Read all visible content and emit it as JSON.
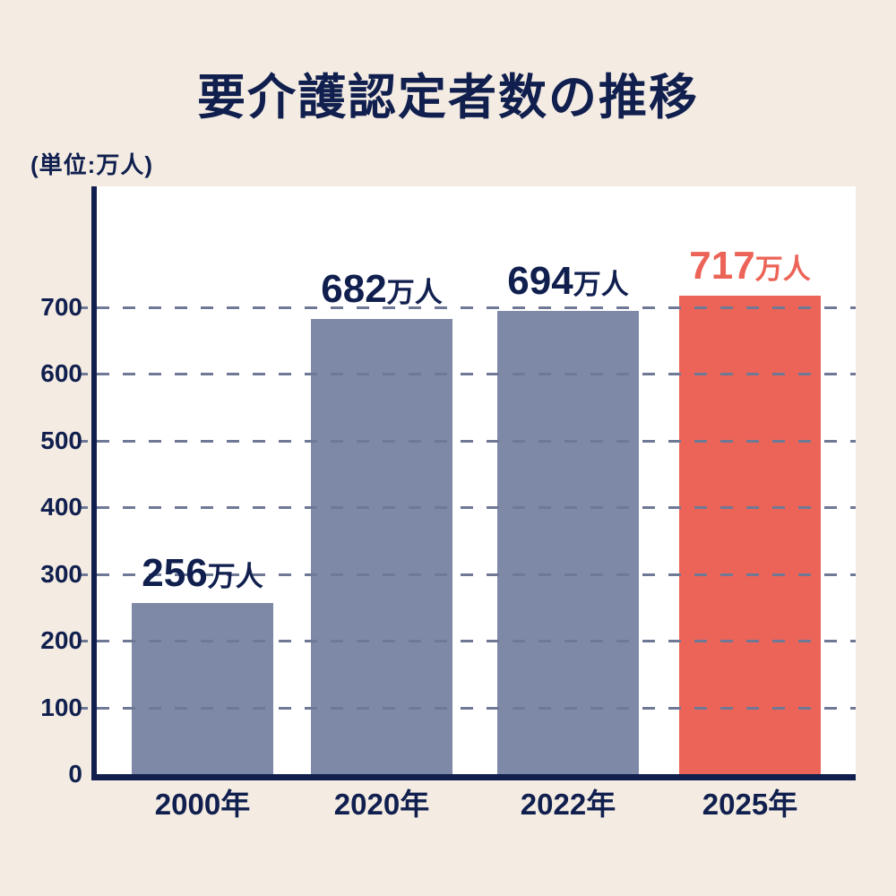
{
  "page": {
    "background": "#f4ece3",
    "plot_background": "#ffffff"
  },
  "header": {
    "title": "要介護認定者数の推移",
    "unit_label": "(単位:万人)"
  },
  "chart_data": {
    "type": "bar",
    "title": "要介護認定者数の推移",
    "unit": "(単位:万人)",
    "categories": [
      "2000年",
      "2020年",
      "2022年",
      "2025年"
    ],
    "values": [
      256,
      682,
      694,
      717
    ],
    "value_suffix": "万人",
    "value_labels": [
      "256万人",
      "682万人",
      "694万人",
      "717万人"
    ],
    "highlight_index": 3,
    "ylim": [
      0,
      750
    ],
    "yticks": [
      0,
      100,
      200,
      300,
      400,
      500,
      600,
      700
    ],
    "grid": "dashed horizontal gridlines at each ytick",
    "legend": "none",
    "colors": {
      "bar": "#7e89a8",
      "bar_highlight": "#ec6457",
      "text": "#101f4e",
      "value_text_highlight": "#ec6457",
      "axis": "#101f4e",
      "gridline": "#6f7996",
      "background": "#f4ece3",
      "plot_background": "#ffffff"
    }
  }
}
